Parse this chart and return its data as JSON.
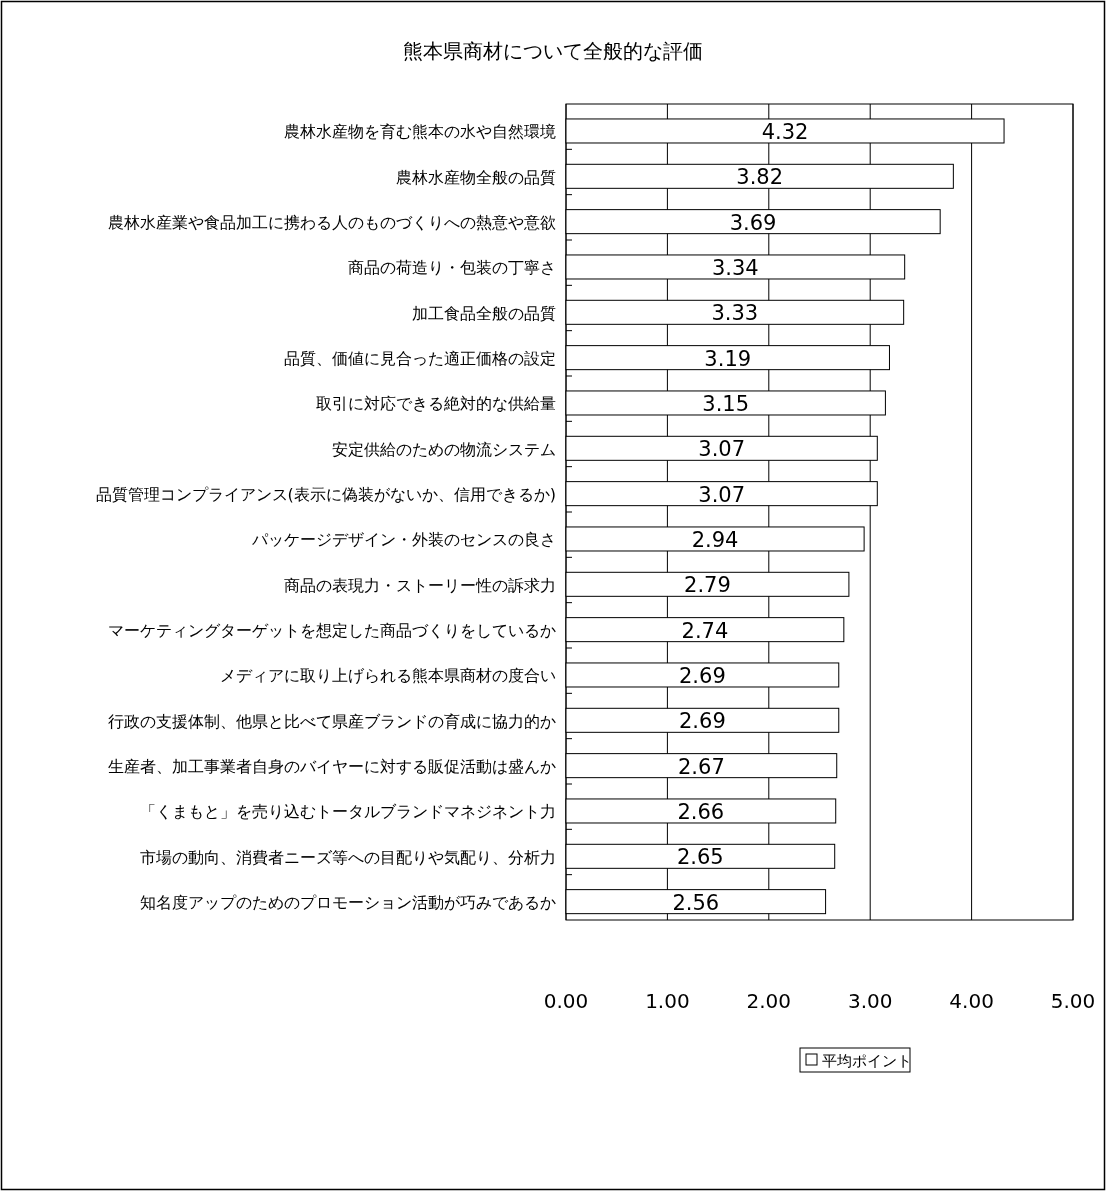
{
  "chart_data": {
    "type": "bar",
    "orientation": "horizontal",
    "title": "熊本県商材について全般的な評価",
    "categories": [
      "農林水産物を育む熊本の水や自然環境",
      "農林水産物全般の品質",
      "農林水産業や食品加工に携わる人のものづくりへの熱意や意欲",
      "商品の荷造り・包装の丁寧さ",
      "加工食品全般の品質",
      "品質、価値に見合った適正価格の設定",
      "取引に対応できる絶対的な供給量",
      "安定供給のための物流システム",
      "品質管理コンプライアンス(表示に偽装がないか、信用できるか)",
      "パッケージデザイン・外装のセンスの良さ",
      "商品の表現力・ストーリー性の訴求力",
      "マーケティングターゲットを想定した商品づくりをしているか",
      "メディアに取り上げられる熊本県商材の度合い",
      "行政の支援体制、他県と比べて県産ブランドの育成に協力的か",
      "生産者、加工事業者自身のバイヤーに対する販促活動は盛んか",
      "「くまもと」を売り込むトータルブランドマネジネント力",
      "市場の動向、消費者ニーズ等への目配りや気配り、分析力",
      "知名度アップのためのプロモーション活動が巧みであるか"
    ],
    "series": [
      {
        "name": "平均ポイント",
        "color": "#ffffff",
        "values": [
          4.32,
          3.82,
          3.69,
          3.34,
          3.33,
          3.19,
          3.15,
          3.07,
          3.07,
          2.94,
          2.79,
          2.74,
          2.69,
          2.69,
          2.67,
          2.66,
          2.65,
          2.56
        ]
      }
    ],
    "xlim": [
      0,
      5
    ],
    "xticks": [
      {
        "value": 0,
        "label": "0.00"
      },
      {
        "value": 1,
        "label": "1.00"
      },
      {
        "value": 2,
        "label": "2.00"
      },
      {
        "value": 3,
        "label": "3.00"
      },
      {
        "value": 4,
        "label": "4.00"
      },
      {
        "value": 5,
        "label": "5.00"
      }
    ],
    "grid": "x",
    "legend": "bottom",
    "data_labels": true
  }
}
